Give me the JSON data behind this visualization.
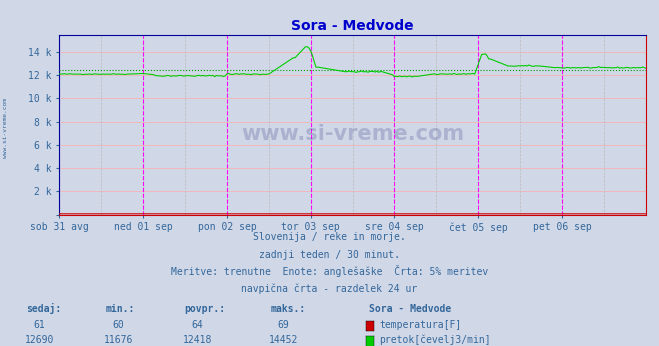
{
  "title": "Sora - Medvode",
  "title_color": "#0000cc",
  "bg_color": "#d0d8e8",
  "plot_bg_color": "#d0d8e8",
  "ylim": [
    0,
    15500
  ],
  "yticks": [
    0,
    2000,
    4000,
    6000,
    8000,
    10000,
    12000,
    14000
  ],
  "ytick_labels": [
    "",
    "2 k",
    "4 k",
    "6 k",
    "8 k",
    "10 k",
    "12 k",
    "14 k"
  ],
  "x_labels": [
    "sob 31 avg",
    "ned 01 sep",
    "pon 02 sep",
    "tor 03 sep",
    "sre 04 sep",
    "čet 05 sep",
    "pet 06 sep"
  ],
  "x_positions": [
    0,
    48,
    96,
    144,
    192,
    240,
    288
  ],
  "total_points": 337,
  "grid_color_h": "#ffaaaa",
  "grid_color_v": "#bbbbbb",
  "vline_color": "#ff00ff",
  "avg_line_color": "#009900",
  "avg_line_value": 12418,
  "temp_color": "#cc0000",
  "flow_color": "#00cc00",
  "temp_sedaj": 61,
  "temp_min": 60,
  "temp_avg": 64,
  "temp_max": 69,
  "flow_sedaj": 12690,
  "flow_min": 11676,
  "flow_avg": 12418,
  "flow_max": 14452,
  "subtitle1": "Slovenija / reke in morje.",
  "subtitle2": "zadnji teden / 30 minut.",
  "subtitle3": "Meritve: trenutne  Enote: anglešaške  Črta: 5% meritev",
  "subtitle4": "navpična črta - razdelek 24 ur",
  "text_color": "#336699",
  "watermark": "www.si-vreme.com",
  "side_label": "www.si-vreme.com"
}
